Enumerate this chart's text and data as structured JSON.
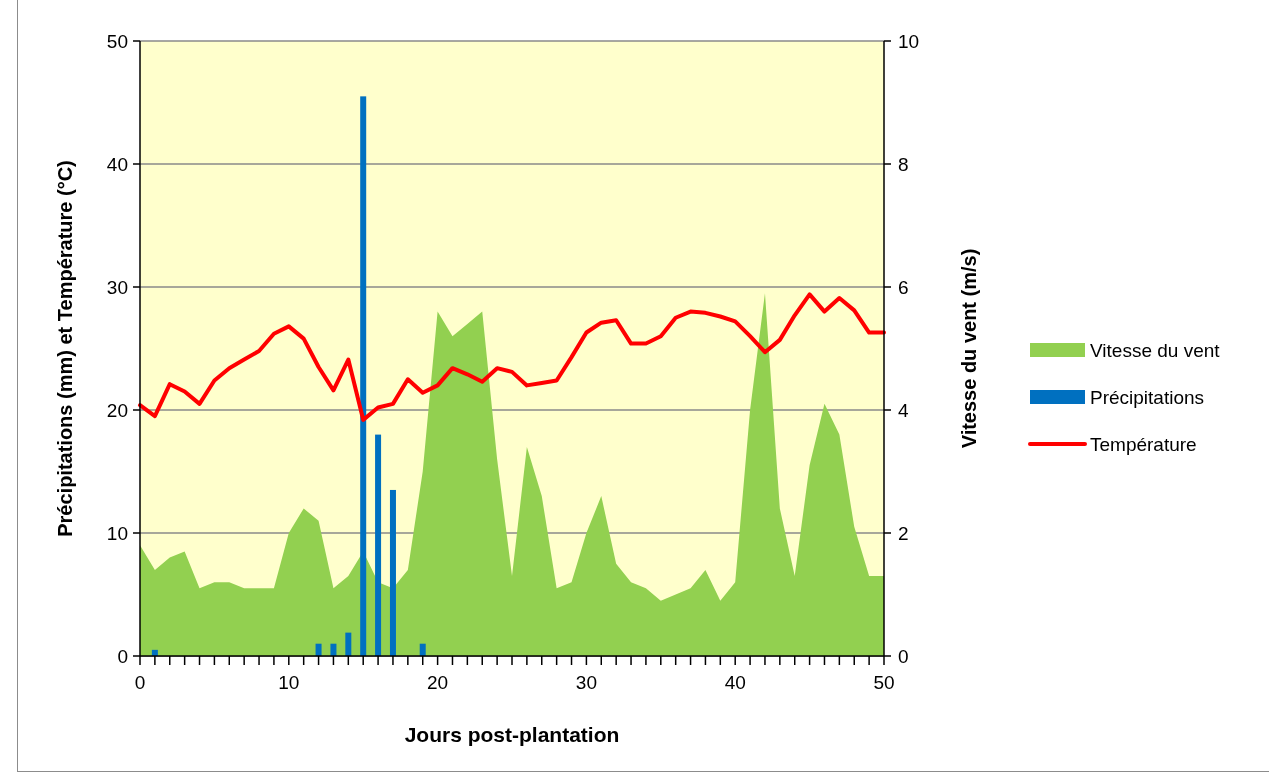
{
  "chart_data": {
    "type": "bar",
    "xlabel": "Jours post-plantation",
    "ylabel": "Précipitations (mm) et Température (°C)",
    "y2label": "Vitesse du vent (m/s)",
    "x": [
      0,
      1,
      2,
      3,
      4,
      5,
      6,
      7,
      8,
      9,
      10,
      11,
      12,
      13,
      14,
      15,
      16,
      17,
      18,
      19,
      20,
      21,
      22,
      23,
      24,
      25,
      26,
      27,
      28,
      29,
      30,
      31,
      32,
      33,
      34,
      35,
      36,
      37,
      38,
      39,
      40,
      41,
      42,
      43,
      44,
      45,
      46,
      47,
      48,
      49,
      50
    ],
    "xlim": [
      0,
      50
    ],
    "xticks": [
      0,
      {
        "value": 1,
        "label": null
      },
      {
        "value": 2,
        "label": null
      },
      {
        "value": 3,
        "label": null
      },
      {
        "value": 4,
        "label": null
      },
      {
        "value": 5,
        "label": null
      },
      {
        "value": 6,
        "label": null
      },
      {
        "value": 7,
        "label": null
      },
      {
        "value": 8,
        "label": null
      },
      {
        "value": 9,
        "label": null
      },
      10,
      {
        "value": 11,
        "label": null
      },
      {
        "value": 12,
        "label": null
      },
      {
        "value": 13,
        "label": null
      },
      {
        "value": 14,
        "label": null
      },
      {
        "value": 15,
        "label": null
      },
      {
        "value": 16,
        "label": null
      },
      {
        "value": 17,
        "label": null
      },
      {
        "value": 18,
        "label": null
      },
      {
        "value": 19,
        "label": null
      },
      20,
      {
        "value": 21,
        "label": null
      },
      {
        "value": 22,
        "label": null
      },
      {
        "value": 23,
        "label": null
      },
      {
        "value": 24,
        "label": null
      },
      {
        "value": 25,
        "label": null
      },
      {
        "value": 26,
        "label": null
      },
      {
        "value": 27,
        "label": null
      },
      {
        "value": 28,
        "label": null
      },
      {
        "value": 29,
        "label": null
      },
      30,
      {
        "value": 31,
        "label": null
      },
      {
        "value": 32,
        "label": null
      },
      {
        "value": 33,
        "label": null
      },
      {
        "value": 34,
        "label": null
      },
      {
        "value": 35,
        "label": null
      },
      {
        "value": 36,
        "label": null
      },
      {
        "value": 37,
        "label": null
      },
      {
        "value": 38,
        "label": null
      },
      {
        "value": 39,
        "label": null
      },
      40,
      {
        "value": 41,
        "label": null
      },
      {
        "value": 42,
        "label": null
      },
      {
        "value": 43,
        "label": null
      },
      {
        "value": 44,
        "label": null
      },
      {
        "value": 45,
        "label": null
      },
      {
        "value": 46,
        "label": null
      },
      {
        "value": 47,
        "label": null
      },
      {
        "value": 48,
        "label": null
      },
      {
        "value": 49,
        "label": null
      },
      50
    ],
    "ylim": [
      0,
      50
    ],
    "yticks": [
      0,
      10,
      20,
      30,
      40,
      50
    ],
    "y2lim": [
      0,
      10
    ],
    "y2ticks": [
      0,
      2,
      4,
      6,
      8,
      10
    ],
    "grid": "y",
    "legend": "right",
    "series": [
      {
        "name": "Vitesse du vent",
        "type": "area",
        "axis": "y2",
        "color": "#92d050",
        "values": [
          1.8,
          1.4,
          1.6,
          1.7,
          1.1,
          1.2,
          1.2,
          1.1,
          1.1,
          1.1,
          2.0,
          2.4,
          2.2,
          1.1,
          1.3,
          1.7,
          1.2,
          1.1,
          1.4,
          3.0,
          5.6,
          5.2,
          5.4,
          5.6,
          3.2,
          1.3,
          3.4,
          2.6,
          1.1,
          1.2,
          2.0,
          2.6,
          1.5,
          1.2,
          1.1,
          0.9,
          1.0,
          1.1,
          1.4,
          0.9,
          1.2,
          4.0,
          5.9,
          2.4,
          1.3,
          3.1,
          4.1,
          3.6,
          2.1,
          1.3,
          1.3
        ]
      },
      {
        "name": "Précipitations",
        "color": "#0070c0",
        "x": [
          1,
          12,
          13,
          14,
          15,
          16,
          17,
          19
        ],
        "values": [
          0.5,
          1.0,
          1.0,
          1.9,
          45.5,
          18.0,
          13.5,
          1.0
        ]
      },
      {
        "name": "Température",
        "type": "line",
        "color": "#ff0000",
        "values": [
          20.4,
          19.5,
          22.1,
          21.5,
          20.5,
          22.4,
          23.4,
          24.1,
          24.8,
          26.2,
          26.8,
          25.8,
          23.5,
          21.6,
          24.1,
          19.2,
          20.2,
          20.5,
          22.5,
          21.4,
          22.0,
          23.4,
          22.9,
          22.3,
          23.4,
          23.1,
          22.0,
          22.2,
          22.4,
          24.3,
          26.3,
          27.1,
          27.3,
          25.4,
          25.4,
          26.0,
          27.5,
          28.0,
          27.9,
          27.6,
          27.2,
          26.0,
          24.7,
          25.7,
          27.7,
          29.4,
          28.0,
          29.1,
          28.1,
          26.3,
          26.3
        ]
      }
    ]
  }
}
